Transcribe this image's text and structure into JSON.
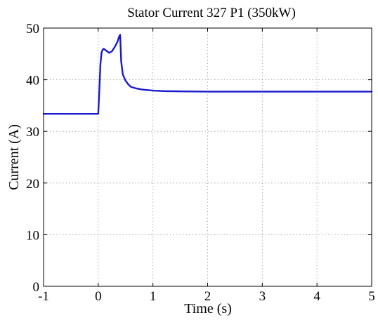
{
  "chart_data": {
    "type": "line",
    "title": "Stator Current 327 P1 (350kW)",
    "xlabel": "Time (s)",
    "ylabel": "Current (A)",
    "xlim": [
      -1,
      5
    ],
    "ylim": [
      0,
      50
    ],
    "xticks": [
      "-1",
      "0",
      "1",
      "2",
      "3",
      "4",
      "5"
    ],
    "yticks": [
      "0",
      "10",
      "20",
      "30",
      "40",
      "50"
    ],
    "grid": true,
    "series": [
      {
        "color": "#1a1acc",
        "x": [
          -1,
          0,
          0.02,
          0.04,
          0.06,
          0.08,
          0.1,
          0.15,
          0.2,
          0.25,
          0.3,
          0.35,
          0.38,
          0.4,
          0.42,
          0.45,
          0.5,
          0.55,
          0.6,
          0.7,
          0.8,
          1.0,
          1.2,
          1.5,
          2,
          3,
          4,
          5
        ],
        "y": [
          33.4,
          33.4,
          38,
          43,
          45.2,
          45.8,
          46,
          45.6,
          45.2,
          45.5,
          46.3,
          47.3,
          48.3,
          48.7,
          43.5,
          41,
          39.8,
          39.1,
          38.6,
          38.3,
          38.1,
          37.9,
          37.8,
          37.75,
          37.7,
          37.7,
          37.7,
          37.7
        ]
      }
    ]
  }
}
